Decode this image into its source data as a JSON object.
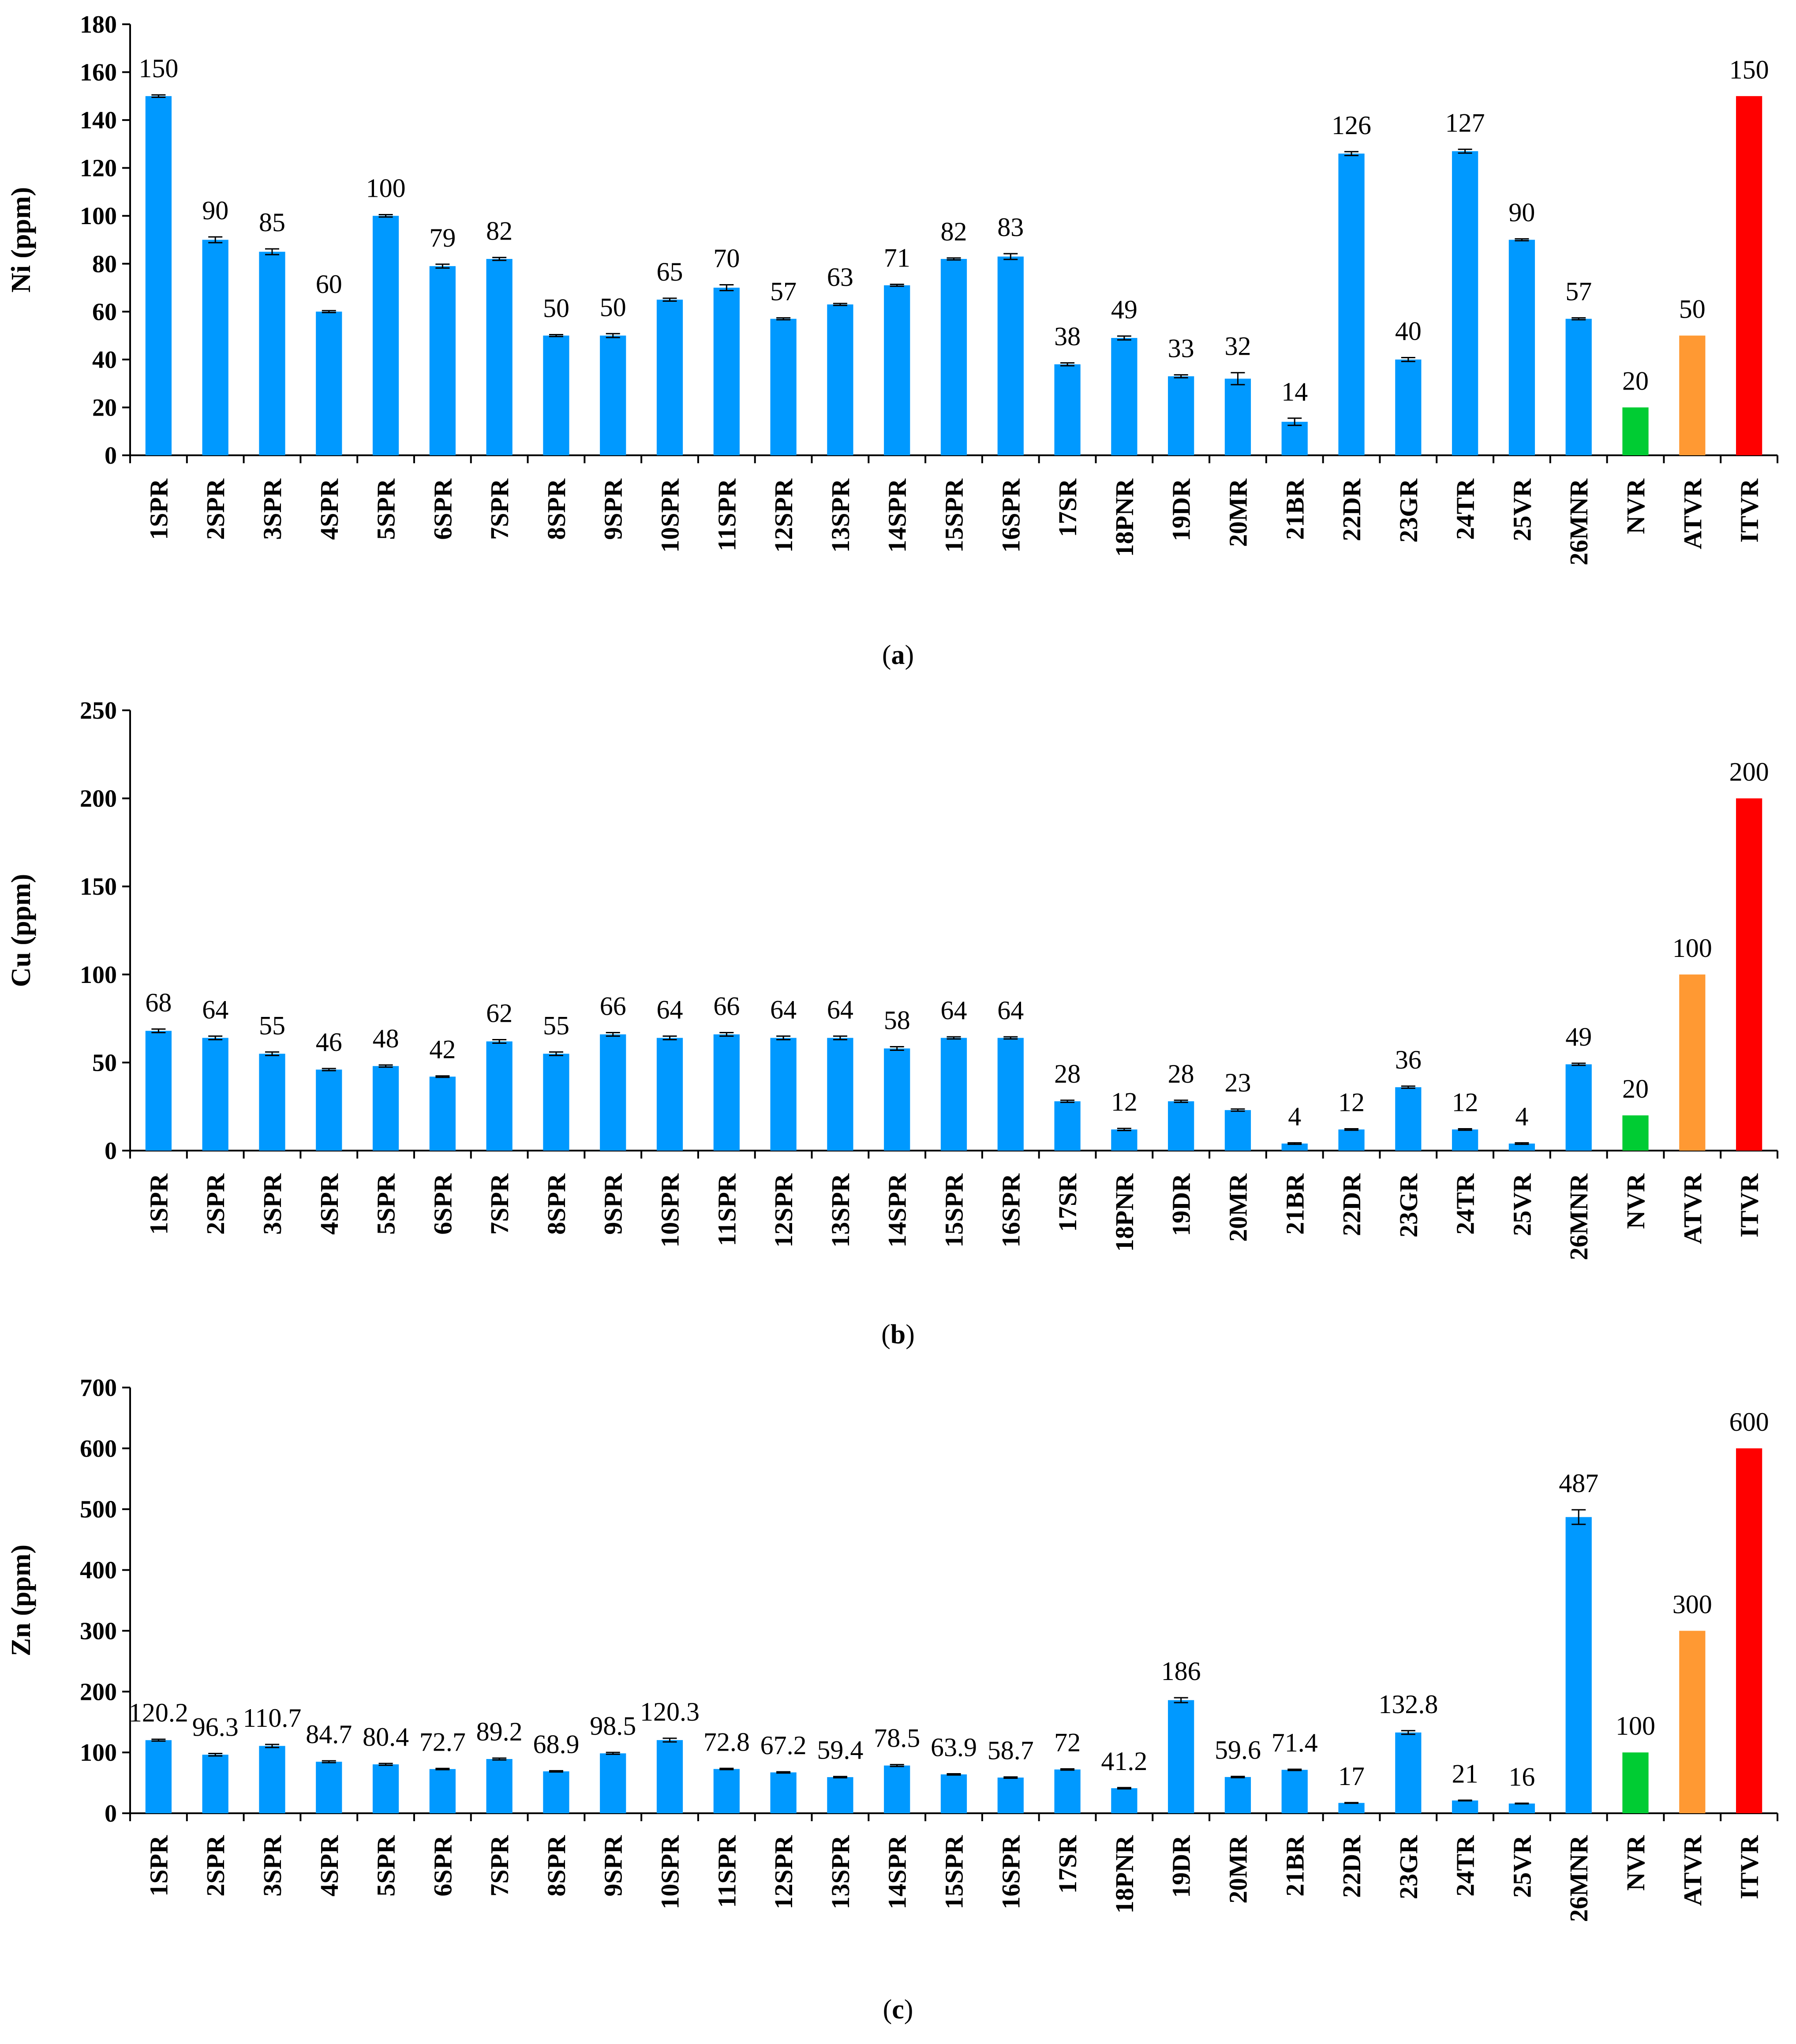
{
  "colors": {
    "sample": "#0099ff",
    "nvr": "#00cc33",
    "atvr": "#ff9933",
    "itvr": "#ff0000"
  },
  "chart_data": [
    {
      "type": "bar",
      "id": "ni",
      "ylabel": "Ni (ppm)",
      "ylim": [
        0,
        180
      ],
      "ytick_step": 20,
      "caption_letter": "a",
      "categories": [
        "1SPR",
        "2SPR",
        "3SPR",
        "4SPR",
        "5SPR",
        "6SPR",
        "7SPR",
        "8SPR",
        "9SPR",
        "10SPR",
        "11SPR",
        "12SPR",
        "13SPR",
        "14SPR",
        "15SPR",
        "16SPR",
        "17SR",
        "18PNR",
        "19DR",
        "20MR",
        "21BR",
        "22DR",
        "23GR",
        "24TR",
        "25VR",
        "26MNR",
        "NVR",
        "ATVR",
        "ITVR"
      ],
      "values": [
        150,
        90,
        85,
        60,
        100,
        79,
        82,
        50,
        50,
        65,
        70,
        57,
        63,
        71,
        82,
        83,
        38,
        49,
        33,
        32,
        14,
        126,
        40,
        127,
        90,
        57,
        20,
        50,
        150
      ],
      "labels": [
        "150",
        "90",
        "85",
        "60",
        "100",
        "79",
        "82",
        "50",
        "50",
        "65",
        "70",
        "57",
        "63",
        "71",
        "82",
        "83",
        "38",
        "49",
        "33",
        "32",
        "14",
        "126",
        "40",
        "127",
        "90",
        "57",
        "20",
        "50",
        "150"
      ],
      "errors": [
        0.5,
        1.2,
        1.2,
        0.4,
        0.5,
        0.8,
        0.6,
        0.4,
        0.8,
        0.6,
        1.2,
        0.4,
        0.4,
        0.4,
        0.4,
        1.2,
        0.6,
        0.8,
        0.6,
        2.5,
        1.5,
        0.8,
        0.8,
        0.8,
        0.4,
        0.4,
        0,
        0,
        0
      ]
    },
    {
      "type": "bar",
      "id": "cu",
      "ylabel": "Cu (ppm)",
      "ylim": [
        0,
        250
      ],
      "ytick_step": 50,
      "caption_letter": "b",
      "categories": [
        "1SPR",
        "2SPR",
        "3SPR",
        "4SPR",
        "5SPR",
        "6SPR",
        "7SPR",
        "8SPR",
        "9SPR",
        "10SPR",
        "11SPR",
        "12SPR",
        "13SPR",
        "14SPR",
        "15SPR",
        "16SPR",
        "17SR",
        "18PNR",
        "19DR",
        "20MR",
        "21BR",
        "22DR",
        "23GR",
        "24TR",
        "25VR",
        "26MNR",
        "NVR",
        "ATVR",
        "ITVR"
      ],
      "values": [
        68,
        64,
        55,
        46,
        48,
        42,
        62,
        55,
        66,
        64,
        66,
        64,
        64,
        58,
        64,
        64,
        28,
        12,
        28,
        23,
        4,
        12,
        36,
        12,
        4,
        49,
        20,
        100,
        200
      ],
      "labels": [
        "68",
        "64",
        "55",
        "46",
        "48",
        "42",
        "62",
        "55",
        "66",
        "64",
        "66",
        "64",
        "64",
        "58",
        "64",
        "64",
        "28",
        "12",
        "28",
        "23",
        "4",
        "12",
        "36",
        "12",
        "4",
        "49",
        "20",
        "100",
        "200"
      ],
      "errors": [
        1,
        1,
        1,
        0.6,
        0.6,
        0.4,
        1,
        1,
        1,
        1,
        1,
        1,
        1,
        1,
        0.6,
        0.6,
        0.6,
        0.6,
        0.6,
        0.6,
        0.4,
        0.4,
        0.6,
        0.4,
        0.4,
        0.6,
        0,
        0,
        0
      ]
    },
    {
      "type": "bar",
      "id": "zn",
      "ylabel": "Zn (ppm)",
      "ylim": [
        0,
        700
      ],
      "ytick_step": 100,
      "caption_letter": "c",
      "categories": [
        "1SPR",
        "2SPR",
        "3SPR",
        "4SPR",
        "5SPR",
        "6SPR",
        "7SPR",
        "8SPR",
        "9SPR",
        "10SPR",
        "11SPR",
        "12SPR",
        "13SPR",
        "14SPR",
        "15SPR",
        "16SPR",
        "17SR",
        "18PNR",
        "19DR",
        "20MR",
        "21BR",
        "22DR",
        "23GR",
        "24TR",
        "25VR",
        "26MNR",
        "NVR",
        "ATVR",
        "ITVR"
      ],
      "values": [
        120.2,
        96.3,
        110.7,
        84.7,
        80.4,
        72.7,
        89.2,
        68.9,
        98.5,
        120.3,
        72.8,
        67.2,
        59.4,
        78.5,
        63.9,
        58.7,
        72,
        41.2,
        186,
        59.6,
        71.4,
        17,
        132.8,
        21,
        16,
        487,
        100,
        300,
        600
      ],
      "labels": [
        "120.2",
        "96.3",
        "110.7",
        "84.7",
        "80.4",
        "72.7",
        "89.2",
        "68.9",
        "98.5",
        "120.3",
        "72.8",
        "67.2",
        "59.4",
        "78.5",
        "63.9",
        "58.7",
        "72",
        "41.2",
        "186",
        "59.6",
        "71.4",
        "17",
        "132.8",
        "21",
        "16",
        "487",
        "100",
        "300",
        "600"
      ],
      "errors": [
        1.5,
        2,
        2.5,
        1.5,
        1.5,
        1,
        1.5,
        1,
        1.5,
        3,
        1,
        1,
        1,
        1.5,
        1,
        1,
        1,
        1,
        4,
        1,
        1,
        0.5,
        3,
        0.5,
        0.5,
        12,
        0,
        0,
        0
      ]
    }
  ]
}
